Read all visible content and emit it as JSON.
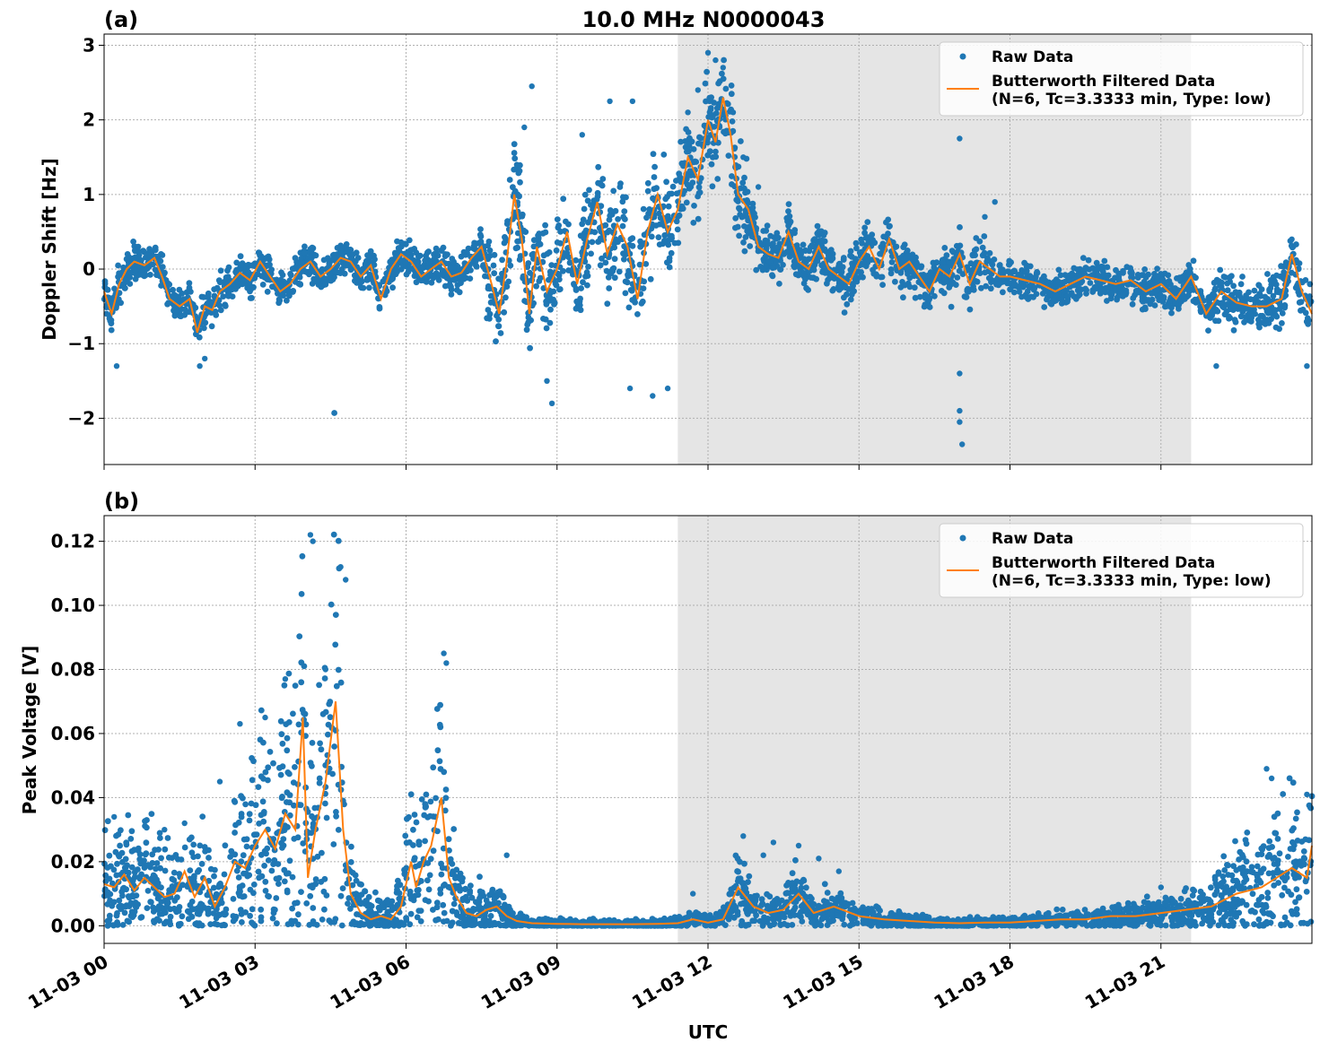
{
  "figure": {
    "title": "10.0 MHz N0000043",
    "xlabel": "UTC"
  },
  "colors": {
    "raw": "#1f77b4",
    "filtered": "#ff7f0e",
    "shade": "#e5e5e5"
  },
  "chart_data": [
    {
      "type": "scatter",
      "panel_label": "(a)",
      "ylabel": "Doppler Shift [Hz]",
      "xlim": [
        0,
        24
      ],
      "ylim": [
        -2.62,
        3.15
      ],
      "y_ticks": [
        -2,
        -1,
        0,
        1,
        2,
        3
      ],
      "y_tick_labels": [
        "−2",
        "−1",
        "0",
        "1",
        "2",
        "3"
      ],
      "x_ticks": [
        0,
        3,
        6,
        9,
        12,
        15,
        18,
        21
      ],
      "x_tick_labels": [
        "11-03 00",
        "11-03 03",
        "11-03 06",
        "11-03 09",
        "11-03 12",
        "11-03 15",
        "11-03 18",
        "11-03 21"
      ],
      "shaded_x": [
        11.4,
        21.6
      ],
      "grid": true,
      "legend": {
        "placement": "top-right",
        "entries": [
          "Raw Data",
          "Butterworth Filtered Data",
          "(N=6, Tc=3.3333 min, Type: low)"
        ]
      },
      "series": [
        {
          "name": "Butterworth Filtered Data",
          "x": [
            0,
            0.15,
            0.3,
            0.45,
            0.6,
            0.8,
            1.0,
            1.15,
            1.3,
            1.5,
            1.7,
            1.85,
            2.0,
            2.15,
            2.3,
            2.5,
            2.7,
            2.9,
            3.1,
            3.3,
            3.5,
            3.7,
            3.9,
            4.1,
            4.3,
            4.5,
            4.7,
            4.9,
            5.1,
            5.3,
            5.5,
            5.7,
            5.9,
            6.1,
            6.3,
            6.5,
            6.7,
            6.9,
            7.1,
            7.3,
            7.5,
            7.7,
            7.85,
            8.0,
            8.15,
            8.3,
            8.45,
            8.6,
            8.8,
            9.0,
            9.2,
            9.4,
            9.6,
            9.8,
            10.0,
            10.2,
            10.4,
            10.6,
            10.8,
            11.0,
            11.2,
            11.4,
            11.6,
            11.8,
            12.0,
            12.15,
            12.3,
            12.45,
            12.6,
            12.8,
            13.0,
            13.2,
            13.4,
            13.6,
            13.8,
            14.0,
            14.2,
            14.4,
            14.6,
            14.8,
            15.0,
            15.2,
            15.4,
            15.6,
            15.8,
            16.0,
            16.2,
            16.4,
            16.6,
            16.8,
            17.0,
            17.2,
            17.4,
            17.6,
            17.8,
            18.0,
            18.3,
            18.6,
            18.9,
            19.2,
            19.5,
            19.8,
            20.1,
            20.4,
            20.7,
            21.0,
            21.3,
            21.6,
            21.9,
            22.2,
            22.5,
            22.8,
            23.1,
            23.4,
            23.6,
            23.8,
            24.0
          ],
          "y": [
            -0.3,
            -0.6,
            -0.2,
            0.0,
            0.1,
            0.05,
            0.15,
            -0.1,
            -0.4,
            -0.5,
            -0.4,
            -0.85,
            -0.5,
            -0.55,
            -0.3,
            -0.2,
            -0.05,
            -0.15,
            0.1,
            -0.1,
            -0.3,
            -0.2,
            0.0,
            0.1,
            -0.1,
            0.0,
            0.15,
            0.1,
            -0.1,
            0.05,
            -0.4,
            0.0,
            0.2,
            0.1,
            -0.1,
            0.0,
            0.1,
            -0.1,
            -0.05,
            0.15,
            0.3,
            -0.2,
            -0.6,
            0.1,
            1.0,
            0.4,
            -0.6,
            0.3,
            -0.3,
            0.0,
            0.5,
            -0.2,
            0.4,
            0.9,
            0.2,
            0.6,
            0.3,
            -0.4,
            0.5,
            1.0,
            0.5,
            0.8,
            1.5,
            1.2,
            2.0,
            1.7,
            2.3,
            1.8,
            1.0,
            0.8,
            0.3,
            0.2,
            0.15,
            0.5,
            0.1,
            0.0,
            0.3,
            0.0,
            -0.1,
            -0.2,
            0.1,
            0.3,
            0.0,
            0.4,
            0.0,
            0.1,
            -0.1,
            -0.3,
            0.0,
            -0.1,
            0.2,
            -0.2,
            0.1,
            0.0,
            -0.1,
            -0.1,
            -0.15,
            -0.2,
            -0.3,
            -0.2,
            -0.1,
            -0.15,
            -0.2,
            -0.15,
            -0.3,
            -0.2,
            -0.4,
            -0.1,
            -0.6,
            -0.3,
            -0.45,
            -0.5,
            -0.5,
            -0.4,
            0.2,
            -0.3,
            -0.6
          ]
        },
        {
          "name": "Raw Data",
          "x": [
            0.25,
            1.9,
            2.0,
            8.2,
            8.35,
            8.5,
            8.8,
            8.9,
            9.5,
            10.05,
            10.45,
            10.5,
            10.9,
            11.2,
            11.6,
            11.8,
            12.0,
            12.15,
            12.3,
            12.5,
            12.7,
            13.0,
            17.0,
            17.0,
            17.0,
            17.05,
            17.0,
            17.5,
            17.7,
            22.1,
            23.6,
            23.9
          ],
          "y": [
            -1.3,
            -1.3,
            -1.2,
            1.4,
            1.9,
            2.45,
            -1.5,
            -1.8,
            1.8,
            2.25,
            -1.6,
            2.25,
            -1.7,
            -1.6,
            2.1,
            2.4,
            2.9,
            2.8,
            2.7,
            2.1,
            1.5,
            1.1,
            1.75,
            -1.9,
            -2.05,
            -2.35,
            -1.4,
            0.7,
            0.9,
            -1.3,
            0.4,
            -1.3
          ]
        }
      ]
    },
    {
      "type": "scatter",
      "panel_label": "(b)",
      "ylabel": "Peak Voltage [V]",
      "xlim": [
        0,
        24
      ],
      "ylim": [
        -0.0055,
        0.128
      ],
      "y_ticks": [
        0.0,
        0.02,
        0.04,
        0.06,
        0.08,
        0.1,
        0.12
      ],
      "y_tick_labels": [
        "0.00",
        "0.02",
        "0.04",
        "0.06",
        "0.08",
        "0.10",
        "0.12"
      ],
      "x_ticks": [
        0,
        3,
        6,
        9,
        12,
        15,
        18,
        21
      ],
      "x_tick_labels": [
        "11-03 00",
        "11-03 03",
        "11-03 06",
        "11-03 09",
        "11-03 12",
        "11-03 15",
        "11-03 18",
        "11-03 21"
      ],
      "shaded_x": [
        11.4,
        21.6
      ],
      "grid": true,
      "legend": {
        "placement": "top-right",
        "entries": [
          "Raw Data",
          "Butterworth Filtered Data",
          "(N=6, Tc=3.3333 min, Type: low)"
        ]
      },
      "series": [
        {
          "name": "Butterworth Filtered Data",
          "x": [
            0,
            0.2,
            0.4,
            0.6,
            0.8,
            1.0,
            1.2,
            1.4,
            1.6,
            1.8,
            2.0,
            2.2,
            2.4,
            2.6,
            2.8,
            3.0,
            3.2,
            3.4,
            3.6,
            3.8,
            3.95,
            4.05,
            4.2,
            4.4,
            4.6,
            4.75,
            4.9,
            5.1,
            5.3,
            5.5,
            5.7,
            5.9,
            6.1,
            6.2,
            6.35,
            6.5,
            6.7,
            6.85,
            7.0,
            7.2,
            7.4,
            7.6,
            7.8,
            8.0,
            8.2,
            8.5,
            9.0,
            9.5,
            10.0,
            10.5,
            11.0,
            11.4,
            11.7,
            12.0,
            12.3,
            12.6,
            12.9,
            13.2,
            13.5,
            13.8,
            14.1,
            14.5,
            15.0,
            15.5,
            16.0,
            16.5,
            17.0,
            17.5,
            18.0,
            18.5,
            19.0,
            19.5,
            20.0,
            20.5,
            21.0,
            21.5,
            22.0,
            22.5,
            23.0,
            23.3,
            23.6,
            23.9,
            24.0
          ],
          "y": [
            0.013,
            0.012,
            0.016,
            0.011,
            0.015,
            0.012,
            0.009,
            0.01,
            0.017,
            0.009,
            0.015,
            0.006,
            0.012,
            0.02,
            0.018,
            0.025,
            0.03,
            0.024,
            0.035,
            0.03,
            0.065,
            0.015,
            0.03,
            0.045,
            0.07,
            0.03,
            0.01,
            0.004,
            0.002,
            0.003,
            0.002,
            0.006,
            0.02,
            0.012,
            0.02,
            0.025,
            0.04,
            0.015,
            0.009,
            0.004,
            0.003,
            0.005,
            0.006,
            0.003,
            0.0015,
            0.0008,
            0.0006,
            0.0005,
            0.0005,
            0.0005,
            0.0006,
            0.0008,
            0.002,
            0.001,
            0.002,
            0.012,
            0.006,
            0.004,
            0.005,
            0.01,
            0.004,
            0.006,
            0.003,
            0.002,
            0.0015,
            0.001,
            0.0008,
            0.001,
            0.001,
            0.0015,
            0.002,
            0.002,
            0.003,
            0.003,
            0.004,
            0.005,
            0.006,
            0.01,
            0.012,
            0.015,
            0.018,
            0.015,
            0.025
          ]
        },
        {
          "name": "Raw Data",
          "x": [
            0.2,
            1.2,
            1.6,
            2.3,
            2.7,
            3.2,
            3.6,
            4.1,
            4.15,
            4.4,
            4.7,
            4.8,
            6.75,
            6.8,
            8.0,
            11.7,
            12.7,
            13.1,
            13.3,
            13.8,
            14.2,
            14.6,
            21.0,
            23.1,
            23.2,
            23.9
          ],
          "y": [
            0.034,
            0.03,
            0.032,
            0.045,
            0.063,
            0.065,
            0.077,
            0.122,
            0.12,
            0.08,
            0.112,
            0.108,
            0.085,
            0.082,
            0.022,
            0.01,
            0.028,
            0.022,
            0.026,
            0.025,
            0.021,
            0.017,
            0.012,
            0.049,
            0.046,
            0.041
          ]
        }
      ]
    }
  ]
}
